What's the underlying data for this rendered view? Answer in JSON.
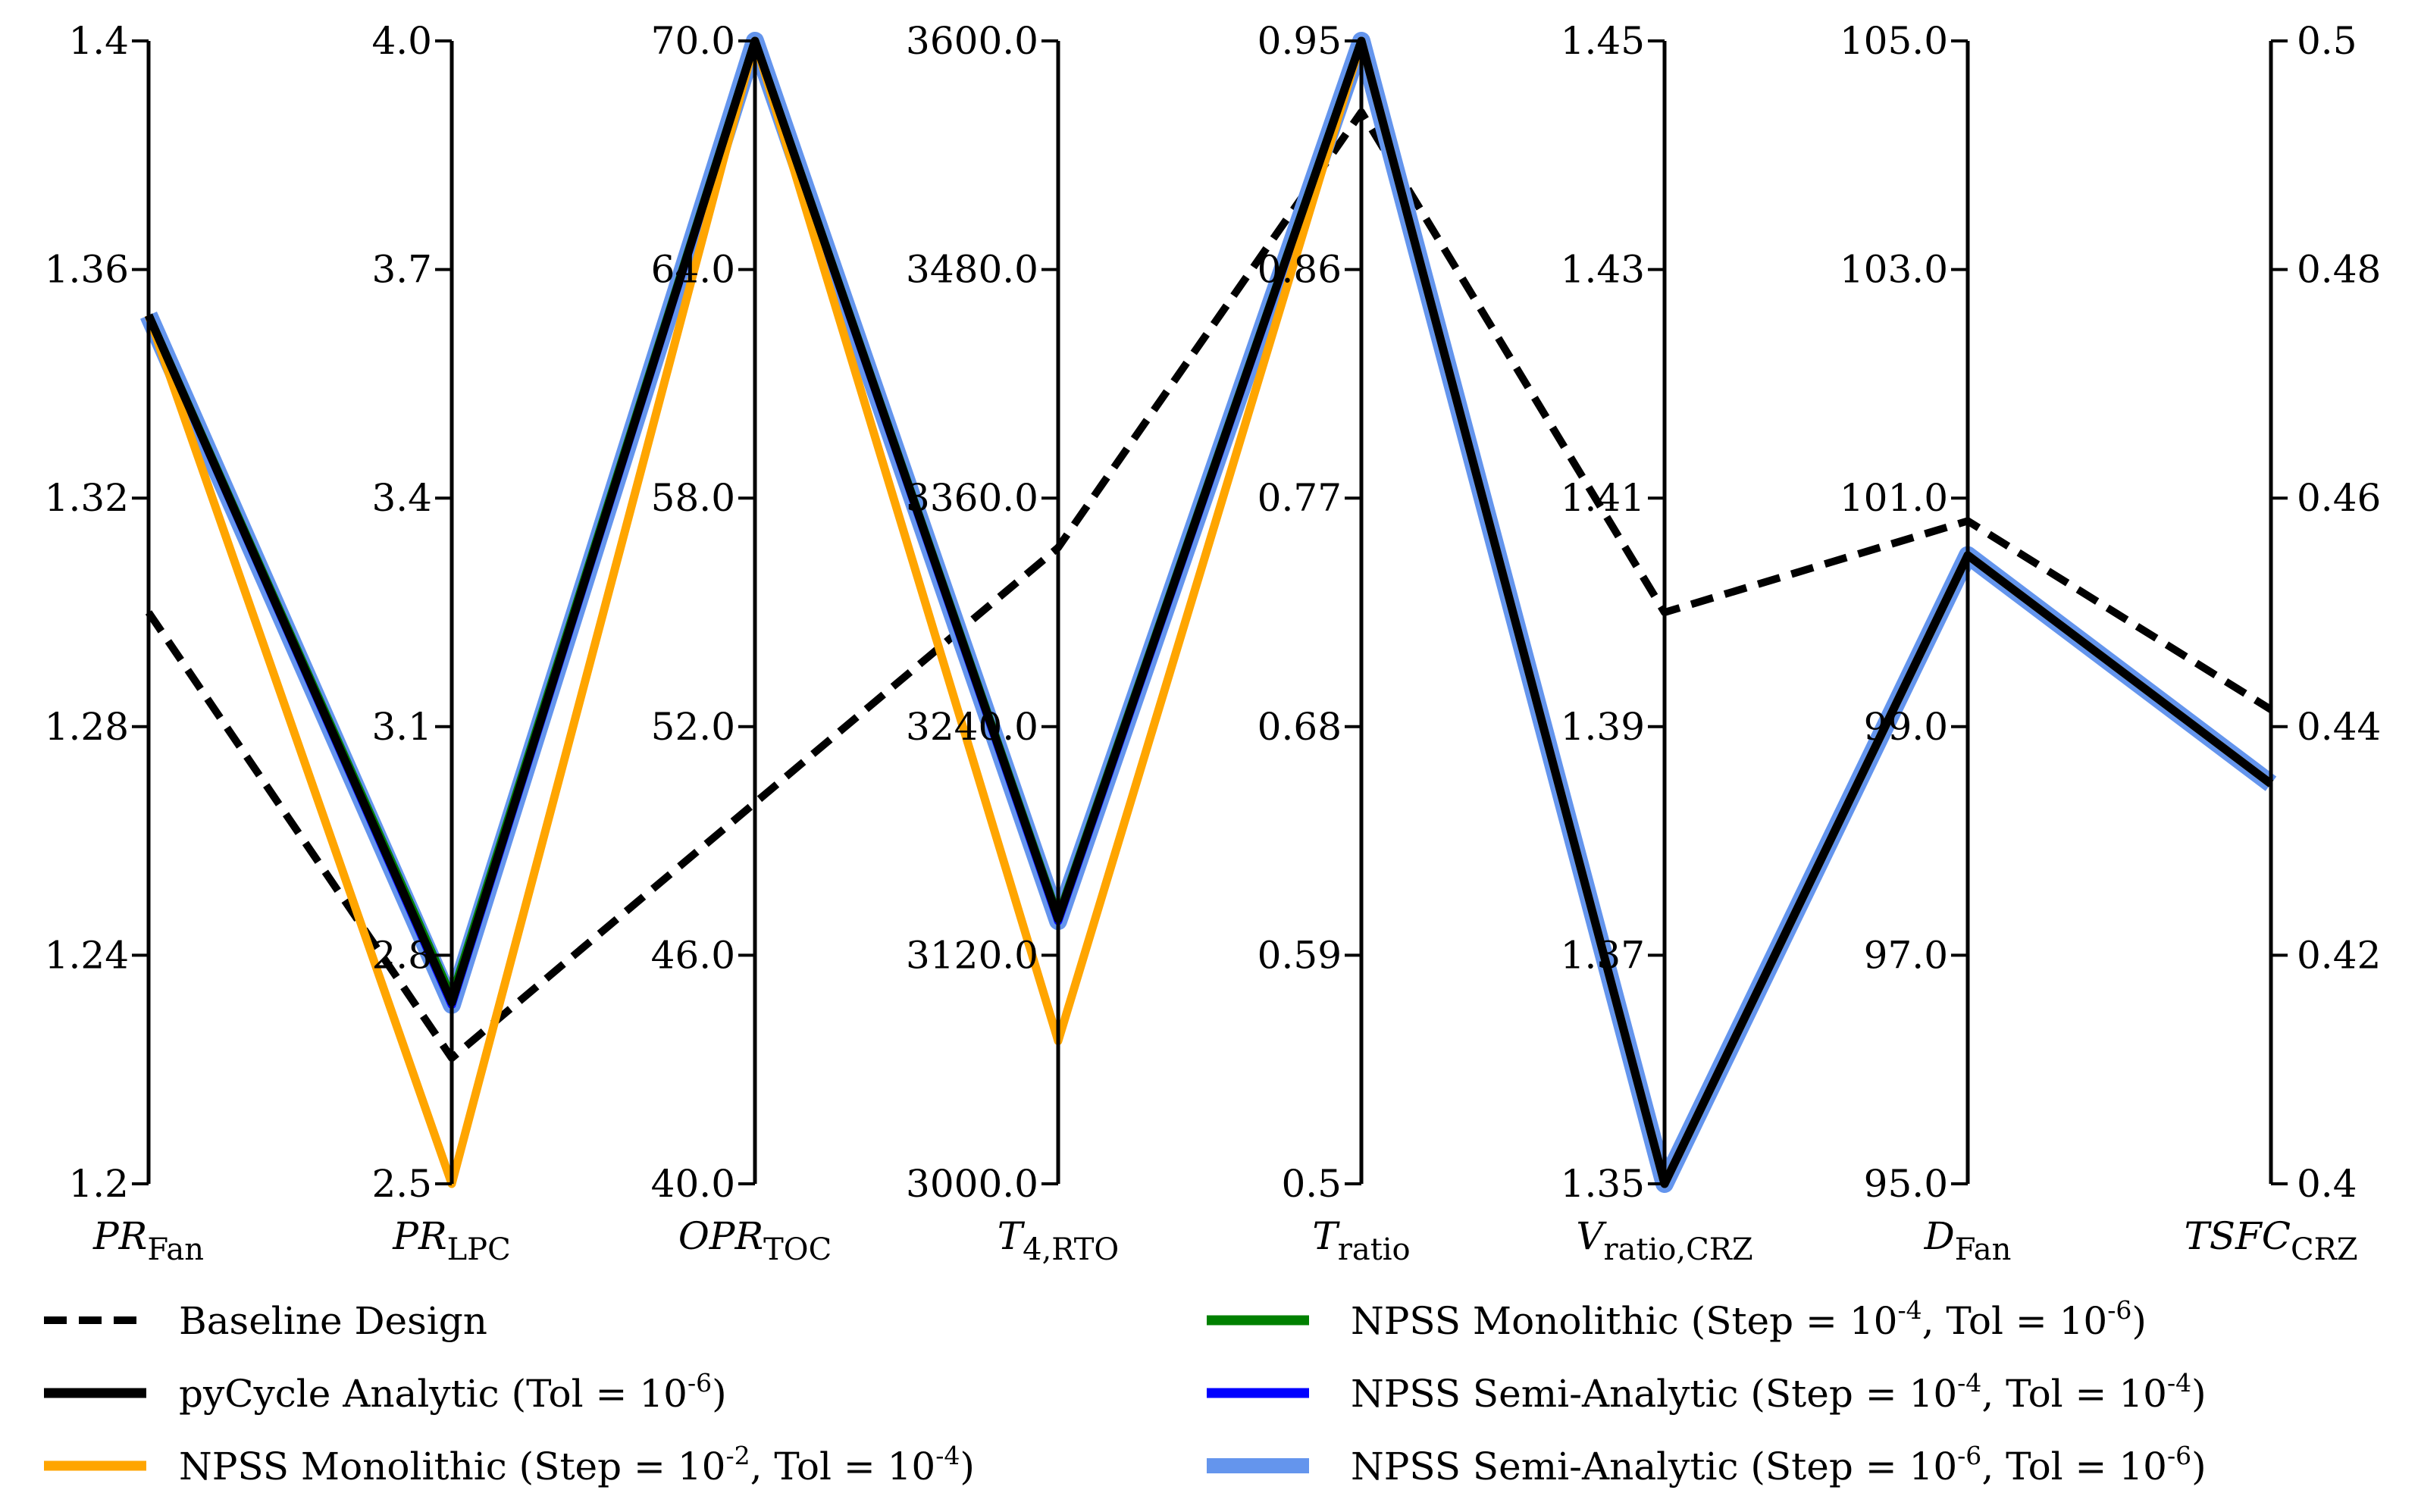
{
  "chart_data": {
    "type": "parallel-coordinates",
    "title": "",
    "axes": [
      {
        "name": "PR",
        "sub": "Fan",
        "italic_sub": false,
        "range": [
          1.2,
          1.4
        ],
        "ticks": [
          "1.2",
          "1.24",
          "1.28",
          "1.32",
          "1.36",
          "1.4"
        ],
        "tick_side": "left"
      },
      {
        "name": "PR",
        "sub": "LPC",
        "italic_sub": false,
        "range": [
          2.5,
          4.0
        ],
        "ticks": [
          "2.5",
          "2.8",
          "3.1",
          "3.4",
          "3.7",
          "4.0"
        ],
        "tick_side": "left"
      },
      {
        "name": "OPR",
        "sub": "TOC",
        "italic_sub": false,
        "range": [
          40.0,
          70.0
        ],
        "ticks": [
          "40.0",
          "46.0",
          "52.0",
          "58.0",
          "64.0",
          "70.0"
        ],
        "tick_side": "left"
      },
      {
        "name": "T",
        "sub": "4,RTO",
        "italic_sub": false,
        "range": [
          3000.0,
          3600.0
        ],
        "ticks": [
          "3000.0",
          "3120.0",
          "3240.0",
          "3360.0",
          "3480.0",
          "3600.0"
        ],
        "tick_side": "left"
      },
      {
        "name": "T",
        "sub": "ratio",
        "italic_sub": false,
        "range": [
          0.5,
          0.95
        ],
        "ticks": [
          "0.5",
          "0.59",
          "0.68",
          "0.77",
          "0.86",
          "0.95"
        ],
        "tick_side": "left"
      },
      {
        "name": "V",
        "sub": "ratio,CRZ",
        "italic_sub": false,
        "range": [
          1.35,
          1.45
        ],
        "ticks": [
          "1.35",
          "1.37",
          "1.39",
          "1.41",
          "1.43",
          "1.45"
        ],
        "tick_side": "left"
      },
      {
        "name": "D",
        "sub": "Fan",
        "italic_sub": false,
        "range": [
          95.0,
          105.0
        ],
        "ticks": [
          "95.0",
          "97.0",
          "99.0",
          "101.0",
          "103.0",
          "105.0"
        ],
        "tick_side": "left"
      },
      {
        "name": "TSFC",
        "sub": "CRZ",
        "italic_sub": false,
        "range": [
          0.4,
          0.5
        ],
        "ticks": [
          "0.4",
          "0.42",
          "0.44",
          "0.46",
          "0.48",
          "0.5"
        ],
        "tick_side": "right"
      }
    ],
    "series": [
      {
        "name": "Baseline Design",
        "color": "#000000",
        "style": "dashed",
        "values": [
          1.3,
          2.665,
          50.0,
          3334.0,
          0.922,
          1.4,
          100.8,
          0.4415
        ]
      },
      {
        "name": "NPSS Semi-Analytic (Step = 10^-6, Tol = 10^-6)",
        "color": "#6495ED",
        "style": "wide",
        "values": [
          1.352,
          2.735,
          70.0,
          3138.0,
          0.95,
          1.35,
          100.5,
          0.435
        ]
      },
      {
        "name": "NPSS Semi-Analytic (Step = 10^-4, Tol = 10^-4)",
        "color": "#0000FF",
        "style": "solid",
        "values": [
          1.352,
          2.735,
          70.0,
          3138.0,
          0.95,
          1.35,
          100.5,
          0.435
        ]
      },
      {
        "name": "NPSS Monolithic (Step = 10^-4, Tol = 10^-6)",
        "color": "#008000",
        "style": "solid",
        "values": [
          1.352,
          2.745,
          70.0,
          3140.0,
          0.95,
          1.35,
          100.5,
          0.435
        ]
      },
      {
        "name": "NPSS Monolithic (Step = 10^-2, Tol = 10^-4)",
        "color": "#FFA500",
        "style": "solid",
        "values": [
          1.352,
          2.5,
          70.0,
          3075.0,
          0.95,
          1.35,
          100.5,
          0.435
        ]
      },
      {
        "name": "pyCycle Analytic (Tol = 10^-6)",
        "color": "#000000",
        "style": "solid",
        "values": [
          1.352,
          2.738,
          70.0,
          3139.0,
          0.95,
          1.35,
          100.5,
          0.435
        ]
      }
    ],
    "legend": {
      "placement": "bottom",
      "items": [
        {
          "label": "Baseline Design",
          "color": "#000000",
          "style": "dashed",
          "parts": [
            "Baseline Design"
          ]
        },
        {
          "label": "pyCycle Analytic (Tol = 10^-6)",
          "color": "#000000",
          "style": "solid",
          "parts": [
            "pyCycle Analytic (Tol = 10",
            "-6",
            ")"
          ]
        },
        {
          "label": "NPSS Monolithic (Step = 10^-2, Tol = 10^-4)",
          "color": "#FFA500",
          "style": "solid",
          "parts": [
            "NPSS Monolithic (Step = 10",
            "-2",
            ", Tol = 10",
            "-4",
            ")"
          ]
        },
        {
          "label": "NPSS Monolithic (Step = 10^-4, Tol = 10^-6)",
          "color": "#008000",
          "style": "solid",
          "parts": [
            "NPSS Monolithic (Step = 10",
            "-4",
            ", Tol = 10",
            "-6",
            ")"
          ]
        },
        {
          "label": "NPSS Semi-Analytic (Step = 10^-4, Tol = 10^-4)",
          "color": "#0000FF",
          "style": "solid",
          "parts": [
            "NPSS Semi-Analytic (Step = 10",
            "-4",
            ", Tol = 10",
            "-4",
            ")"
          ]
        },
        {
          "label": "NPSS Semi-Analytic (Step = 10^-6, Tol = 10^-6)",
          "color": "#6495ED",
          "style": "wide",
          "parts": [
            "NPSS Semi-Analytic (Step = 10",
            "-6",
            ", Tol = 10",
            "-6",
            ")"
          ]
        }
      ]
    }
  }
}
